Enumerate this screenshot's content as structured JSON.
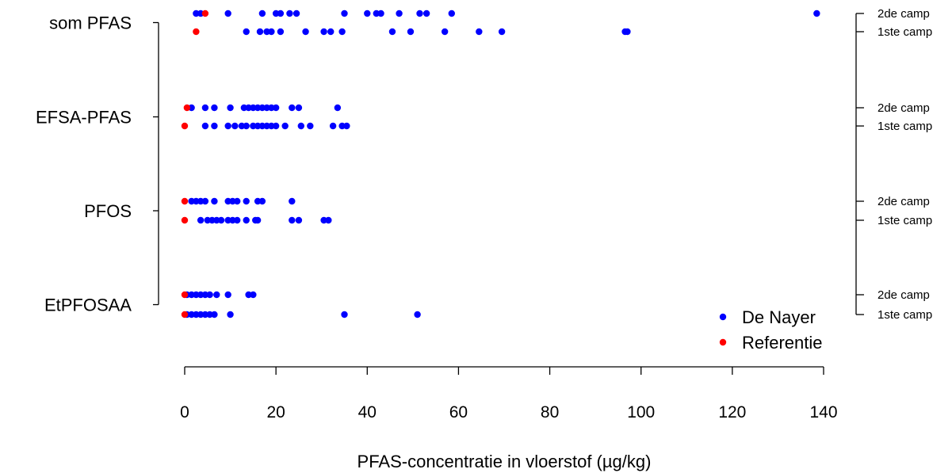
{
  "chart_data": {
    "type": "scatter",
    "title": "",
    "xlabel": "PFAS-concentratie in vloerstof (µg/kg)",
    "xlim": [
      0,
      140
    ],
    "xticks": [
      0,
      20,
      40,
      60,
      80,
      100,
      120,
      140
    ],
    "grid": false,
    "legend_position": "bottom-right",
    "groups": [
      {
        "label": "som PFAS",
        "campaigns": [
          {
            "label": "2de camp",
            "De Nayer": [
              2.5,
              3.5,
              9.5,
              17,
              20,
              21,
              23,
              24.5,
              35,
              40,
              42,
              43,
              47,
              51.5,
              53,
              58.5,
              138.5
            ],
            "Referentie": [
              4.5
            ]
          },
          {
            "label": "1ste camp",
            "De Nayer": [
              13.5,
              16.5,
              18,
              19,
              21,
              26.5,
              30.5,
              32,
              34.5,
              45.5,
              49.5,
              57,
              64.5,
              69.5,
              96.5,
              97
            ],
            "Referentie": [
              2.5
            ]
          }
        ]
      },
      {
        "label": "EFSA-PFAS",
        "campaigns": [
          {
            "label": "2de camp",
            "De Nayer": [
              1.5,
              4.5,
              6.5,
              10,
              13,
              14,
              15,
              16,
              17,
              18,
              19,
              20,
              23.5,
              25,
              33.5
            ],
            "Referentie": [
              0.5
            ]
          },
          {
            "label": "1ste camp",
            "De Nayer": [
              4.5,
              6.5,
              9.5,
              11,
              12.5,
              13.5,
              15,
              16,
              17,
              18,
              19,
              20,
              22,
              25.5,
              27.5,
              32.5,
              34.5,
              35.5
            ],
            "Referentie": [
              0
            ]
          }
        ]
      },
      {
        "label": "PFOS",
        "campaigns": [
          {
            "label": "2de camp",
            "De Nayer": [
              1.5,
              2.5,
              3.5,
              4.5,
              6.5,
              9.5,
              10.5,
              11.5,
              13.5,
              16,
              17,
              23.5
            ],
            "Referentie": [
              0
            ]
          },
          {
            "label": "1ste camp",
            "De Nayer": [
              3.5,
              5,
              6,
              7,
              8,
              9.5,
              10.5,
              11.5,
              13.5,
              15.5,
              16,
              23.5,
              25,
              30.5,
              31.5
            ],
            "Referentie": [
              0
            ]
          }
        ]
      },
      {
        "label": "EtPFOSAA",
        "campaigns": [
          {
            "label": "2de camp",
            "De Nayer": [
              0.5,
              1.5,
              2.5,
              3.5,
              4.5,
              5.5,
              7,
              9.5,
              14,
              15
            ],
            "Referentie": [
              0
            ]
          },
          {
            "label": "1ste camp",
            "De Nayer": [
              0.5,
              1.5,
              2.5,
              3.5,
              4.5,
              5.5,
              6.5,
              10,
              35,
              51
            ],
            "Referentie": [
              0
            ]
          }
        ]
      }
    ],
    "series": [
      {
        "name": "De Nayer",
        "color": "#0000ff"
      },
      {
        "name": "Referentie",
        "color": "#ff0000"
      }
    ]
  }
}
